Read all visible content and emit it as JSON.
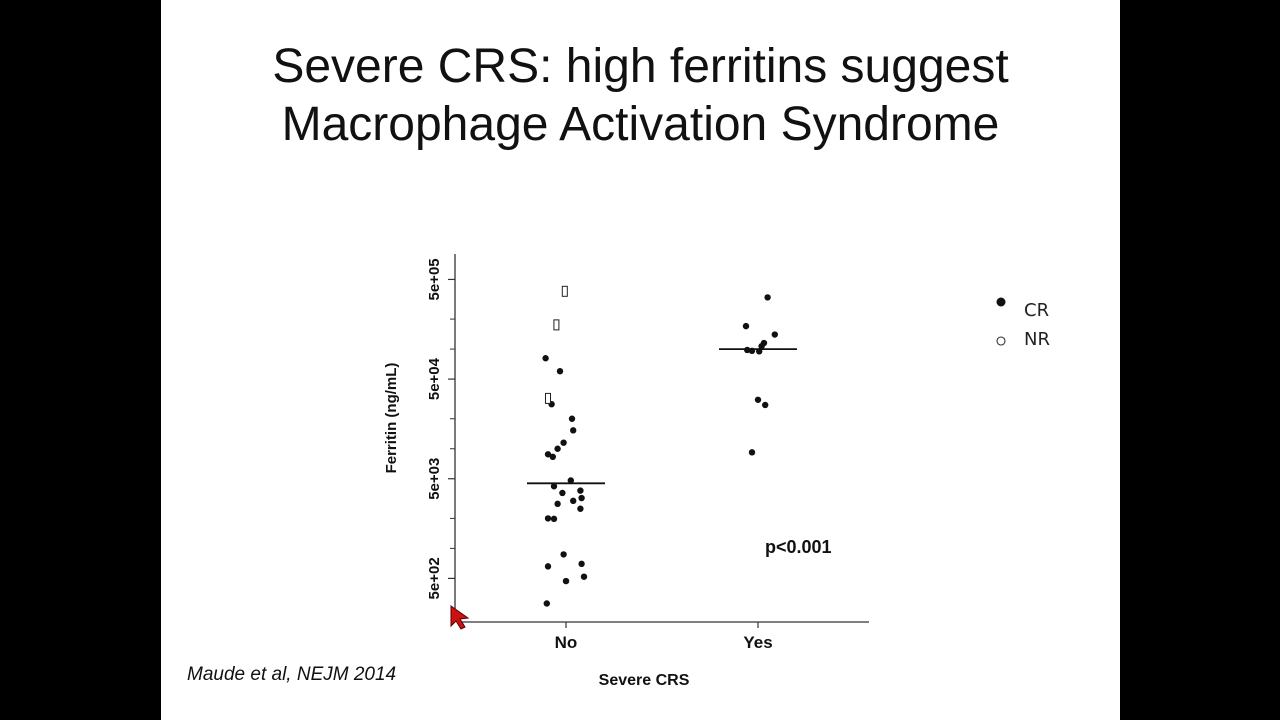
{
  "slide": {
    "title_line1": "Severe CRS: high ferritins suggest",
    "title_line2": "Macrophage Activation Syndrome",
    "citation": "Maude et al, NEJM 2014",
    "annotation": "p<0.001"
  },
  "chart_data": {
    "type": "scatter",
    "title": "",
    "xlabel": "Severe CRS",
    "ylabel": "Ferritin (ng/mL)",
    "yscale": "log",
    "ylim": [
      230,
      900000
    ],
    "categories": [
      "No",
      "Yes"
    ],
    "yticks": [
      {
        "value": 500,
        "label": "5e+02"
      },
      {
        "value": 5000,
        "label": "5e+03"
      },
      {
        "value": 50000,
        "label": "5e+04"
      },
      {
        "value": 500000,
        "label": "5e+05"
      }
    ],
    "legend": {
      "placement": "right",
      "entries": [
        {
          "label": "CR",
          "marker": "filled-circle"
        },
        {
          "label": "NR",
          "marker": "open-circle"
        }
      ]
    },
    "medians": [
      {
        "category": "No",
        "value": 4500
      },
      {
        "category": "Yes",
        "value": 100000
      }
    ],
    "series": [
      {
        "name": "CR",
        "marker": "filled",
        "points": [
          {
            "category": "No",
            "jitter": -0.17,
            "value": 81000
          },
          {
            "category": "No",
            "jitter": -0.05,
            "value": 60000
          },
          {
            "category": "No",
            "jitter": -0.12,
            "value": 28000
          },
          {
            "category": "No",
            "jitter": 0.05,
            "value": 20000
          },
          {
            "category": "No",
            "jitter": 0.06,
            "value": 15300
          },
          {
            "category": "No",
            "jitter": -0.02,
            "value": 11500
          },
          {
            "category": "No",
            "jitter": -0.07,
            "value": 10000
          },
          {
            "category": "No",
            "jitter": -0.15,
            "value": 8800
          },
          {
            "category": "No",
            "jitter": -0.11,
            "value": 8300
          },
          {
            "category": "No",
            "jitter": 0.04,
            "value": 4800
          },
          {
            "category": "No",
            "jitter": -0.1,
            "value": 4200
          },
          {
            "category": "No",
            "jitter": 0.12,
            "value": 3800
          },
          {
            "category": "No",
            "jitter": -0.03,
            "value": 3600
          },
          {
            "category": "No",
            "jitter": 0.13,
            "value": 3200
          },
          {
            "category": "No",
            "jitter": 0.06,
            "value": 3000
          },
          {
            "category": "No",
            "jitter": -0.07,
            "value": 2800
          },
          {
            "category": "No",
            "jitter": 0.12,
            "value": 2500
          },
          {
            "category": "No",
            "jitter": -0.15,
            "value": 2000
          },
          {
            "category": "No",
            "jitter": -0.1,
            "value": 1980
          },
          {
            "category": "No",
            "jitter": -0.02,
            "value": 870
          },
          {
            "category": "No",
            "jitter": 0.13,
            "value": 700
          },
          {
            "category": "No",
            "jitter": -0.15,
            "value": 660
          },
          {
            "category": "No",
            "jitter": 0.15,
            "value": 520
          },
          {
            "category": "No",
            "jitter": 0.0,
            "value": 470
          },
          {
            "category": "No",
            "jitter": -0.16,
            "value": 280
          },
          {
            "category": "Yes",
            "jitter": 0.08,
            "value": 330000
          },
          {
            "category": "Yes",
            "jitter": -0.1,
            "value": 170000
          },
          {
            "category": "Yes",
            "jitter": 0.14,
            "value": 140000
          },
          {
            "category": "Yes",
            "jitter": 0.05,
            "value": 115000
          },
          {
            "category": "Yes",
            "jitter": 0.03,
            "value": 107000
          },
          {
            "category": "Yes",
            "jitter": -0.09,
            "value": 98000
          },
          {
            "category": "Yes",
            "jitter": -0.05,
            "value": 96000
          },
          {
            "category": "Yes",
            "jitter": 0.01,
            "value": 95000
          },
          {
            "category": "Yes",
            "jitter": 0.0,
            "value": 31000
          },
          {
            "category": "Yes",
            "jitter": 0.06,
            "value": 27500
          },
          {
            "category": "Yes",
            "jitter": -0.05,
            "value": 9200
          }
        ]
      },
      {
        "name": "NR",
        "marker": "open",
        "points": [
          {
            "category": "No",
            "jitter": -0.01,
            "value": 380000
          },
          {
            "category": "No",
            "jitter": -0.08,
            "value": 175000
          },
          {
            "category": "No",
            "jitter": -0.15,
            "value": 32000
          }
        ]
      }
    ]
  },
  "colors": {
    "background": "#000000",
    "slide": "#ffffff",
    "ink": "#111111",
    "pointer": "#cc1111"
  },
  "icons": {
    "pointer": "red-cursor-arrow-icon"
  }
}
